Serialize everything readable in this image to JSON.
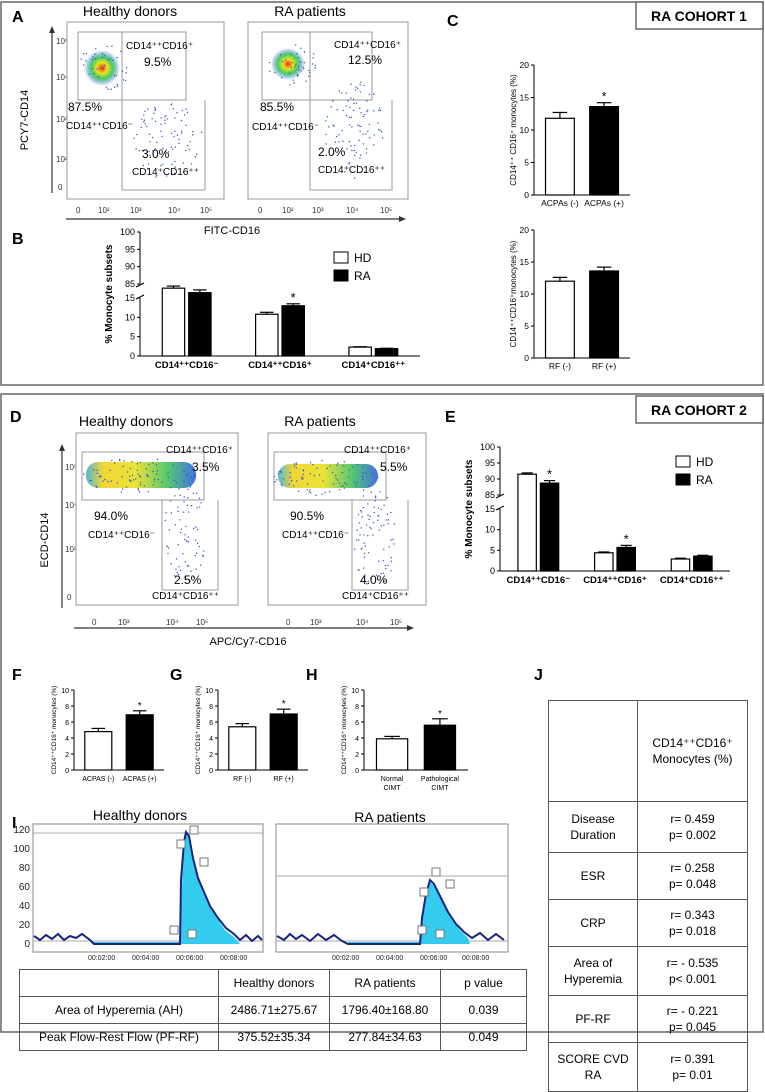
{
  "cohort1_label": "RA COHORT 1",
  "cohort2_label": "RA COHORT 2",
  "panels": {
    "A": "A",
    "B": "B",
    "C": "C",
    "D": "D",
    "E": "E",
    "F": "F",
    "G": "G",
    "H": "H",
    "I": "I",
    "J": "J"
  },
  "flowA": {
    "y_axis": "PCY7-CD14",
    "x_axis": "FITC-CD16",
    "x_ticks": [
      "0",
      "10²",
      "10³",
      "10⁴",
      "10⁵"
    ],
    "y_ticks": [
      "10⁵",
      "10⁴",
      "10³",
      "10²",
      "0"
    ],
    "healthy": {
      "title": "Healthy donors",
      "gate_top": "CD14⁺⁺CD16⁺",
      "pct_top": "9.5%",
      "pct_left": "87.5%",
      "gate_left": "CD14⁺⁺CD16⁻",
      "pct_bottom": "3.0%",
      "gate_bottom": "CD14⁺CD16⁺⁺"
    },
    "ra": {
      "title": "RA patients",
      "gate_top": "CD14⁺⁺CD16⁺",
      "pct_top": "12.5%",
      "pct_left": "85.5%",
      "gate_left": "CD14⁺⁺CD16⁻",
      "pct_bottom": "2.0%",
      "gate_bottom": "CD14⁺CD16⁺⁺"
    }
  },
  "flowD": {
    "y_axis": "ECD-CD14",
    "x_axis": "APC/Cy7-CD16",
    "x_ticks": [
      "0",
      "10³",
      "10⁴",
      "10⁵"
    ],
    "y_ticks": [
      "10⁵",
      "10⁴",
      "10³",
      "0"
    ],
    "healthy": {
      "title": "Healthy donors",
      "gate_top": "CD14⁺⁺CD16⁺",
      "pct_top": "3.5%",
      "pct_left": "94.0%",
      "gate_left": "CD14⁺⁺CD16⁻",
      "pct_bottom": "2.5%",
      "gate_bottom": "CD14⁺CD16⁺⁺"
    },
    "ra": {
      "title": "RA patients",
      "gate_top": "CD14⁺⁺CD16⁺",
      "pct_top": "5.5%",
      "pct_left": "90.5%",
      "gate_left": "CD14⁺⁺CD16⁻",
      "pct_bottom": "4.0%",
      "gate_bottom": "CD14⁺CD16⁺⁺"
    }
  },
  "colors": {
    "hd": "#ffffff",
    "ra": "#000000",
    "trace": "#1a237e",
    "fill": "#33ccee"
  },
  "chart_data": [
    {
      "id": "B",
      "type": "bar",
      "ylabel": "% Monocyte subsets",
      "categories": [
        "CD14⁺⁺CD16⁻",
        "CD14⁺⁺CD16⁺",
        "CD14⁺CD16⁺⁺"
      ],
      "series": [
        {
          "name": "HD",
          "values": [
            83.8,
            10.8,
            2.3
          ],
          "errors": [
            0.6,
            0.5,
            0.1
          ]
        },
        {
          "name": "RA",
          "values": [
            82.5,
            13.0,
            1.9
          ],
          "errors": [
            0.8,
            0.5,
            0.1
          ]
        }
      ],
      "significant": [
        false,
        true,
        false
      ],
      "y_ticks_low": [
        "0",
        "5",
        "10",
        "15"
      ],
      "y_ticks_high": [
        "85",
        "90",
        "95",
        "100"
      ],
      "ylim": [
        0,
        100
      ]
    },
    {
      "id": "C_top",
      "type": "bar",
      "ylabel": "CD14⁺⁺ CD16⁺ monocytes (%)",
      "categories": [
        "ACPAs (-)",
        "ACPAs (+)"
      ],
      "values": [
        11.8,
        13.6
      ],
      "errors": [
        0.9,
        0.6
      ],
      "significant": [
        false,
        true
      ],
      "ylim": [
        0,
        20
      ],
      "y_ticks": [
        "0",
        "5",
        "10",
        "15",
        "20"
      ]
    },
    {
      "id": "C_bottom",
      "type": "bar",
      "ylabel": "CD14⁺⁺CD16⁺monocytes (%)",
      "categories": [
        "RF (-)",
        "RF (+)"
      ],
      "values": [
        12.0,
        13.6
      ],
      "errors": [
        0.6,
        0.6
      ],
      "significant": [
        false,
        false
      ],
      "ylim": [
        0,
        20
      ],
      "y_ticks": [
        "0",
        "5",
        "10",
        "15",
        "20"
      ]
    },
    {
      "id": "E",
      "type": "bar",
      "ylabel": "% Monocyte subsets",
      "categories": [
        "CD14⁺⁺CD16⁻",
        "CD14⁺⁺CD16⁺",
        "CD14⁺CD16⁺⁺"
      ],
      "series": [
        {
          "name": "HD",
          "values": [
            91.5,
            4.4,
            2.9
          ],
          "errors": [
            0.4,
            0.2,
            0.2
          ]
        },
        {
          "name": "RA",
          "values": [
            88.7,
            5.7,
            3.6
          ],
          "errors": [
            0.8,
            0.5,
            0.2
          ]
        }
      ],
      "significant": [
        true,
        true,
        false
      ],
      "y_ticks_low": [
        "0",
        "5",
        "10",
        "15"
      ],
      "y_ticks_high": [
        "85",
        "90",
        "95",
        "100"
      ],
      "ylim": [
        0,
        100
      ]
    },
    {
      "id": "F",
      "type": "bar",
      "ylabel": "CD14⁺⁺CD16⁺ monocytes (%)",
      "categories": [
        "ACPAS (-)",
        "ACPAS (+)"
      ],
      "values": [
        4.8,
        6.9
      ],
      "errors": [
        0.4,
        0.5
      ],
      "significant": [
        false,
        true
      ],
      "ylim": [
        0,
        10
      ],
      "y_ticks": [
        "0",
        "2",
        "4",
        "6",
        "8",
        "10"
      ]
    },
    {
      "id": "G",
      "type": "bar",
      "ylabel": "CD14⁺⁺CD16⁺ monocytes (%)",
      "categories": [
        "RF (-)",
        "RF (+)"
      ],
      "values": [
        5.4,
        7.0
      ],
      "errors": [
        0.4,
        0.6
      ],
      "significant": [
        false,
        true
      ],
      "ylim": [
        0,
        10
      ],
      "y_ticks": [
        "0",
        "2",
        "4",
        "6",
        "8",
        "10"
      ]
    },
    {
      "id": "H",
      "type": "bar",
      "ylabel": "CD14⁺⁺CD16⁺ monocytes (%)",
      "categories": [
        "Normal CIMT",
        "Pathological CIMT"
      ],
      "values": [
        3.9,
        5.6
      ],
      "errors": [
        0.3,
        0.8
      ],
      "significant": [
        false,
        true
      ],
      "ylim": [
        0,
        10
      ],
      "y_ticks": [
        "0",
        "2",
        "4",
        "6",
        "8",
        "10"
      ]
    }
  ],
  "legend": {
    "hd": "HD",
    "ra": "RA"
  },
  "star": "*",
  "panelI": {
    "healthy_title": "Healthy donors",
    "ra_title": "RA patients",
    "y_ticks": [
      "120",
      "100",
      "80",
      "60",
      "40",
      "20",
      "0"
    ],
    "x_ticks": [
      "00:02:00",
      "00:04:00",
      "00:06:00",
      "00:08:00"
    ],
    "headers": [
      "",
      "Healthy donors",
      "RA patients",
      "p value"
    ],
    "rows": [
      [
        "Area of Hyperemia (AH)",
        "2486.71±275.67",
        "1796.40±168.80",
        "0.039"
      ],
      [
        "Peak Flow-Rest Flow (PF-RF)",
        "375.52±35.34",
        "277.84±34.63",
        "0.049"
      ]
    ]
  },
  "panelJ": {
    "header": "CD14⁺⁺CD16⁺ Monocytes (%)",
    "rows": [
      {
        "label": "Disease Duration",
        "r": "r= 0.459",
        "p": "p= 0.002"
      },
      {
        "label": "ESR",
        "r": "r= 0.258",
        "p": "p= 0.048"
      },
      {
        "label": "CRP",
        "r": "r= 0.343",
        "p": "p= 0.018"
      },
      {
        "label": "Area of Hyperemia",
        "r": "r= - 0.535",
        "p": "p< 0.001"
      },
      {
        "label": "PF-RF",
        "r": "r= - 0.221",
        "p": "p= 0.045"
      },
      {
        "label": "SCORE CVD RA",
        "r": "r= 0.391",
        "p": "p= 0.01"
      }
    ]
  }
}
